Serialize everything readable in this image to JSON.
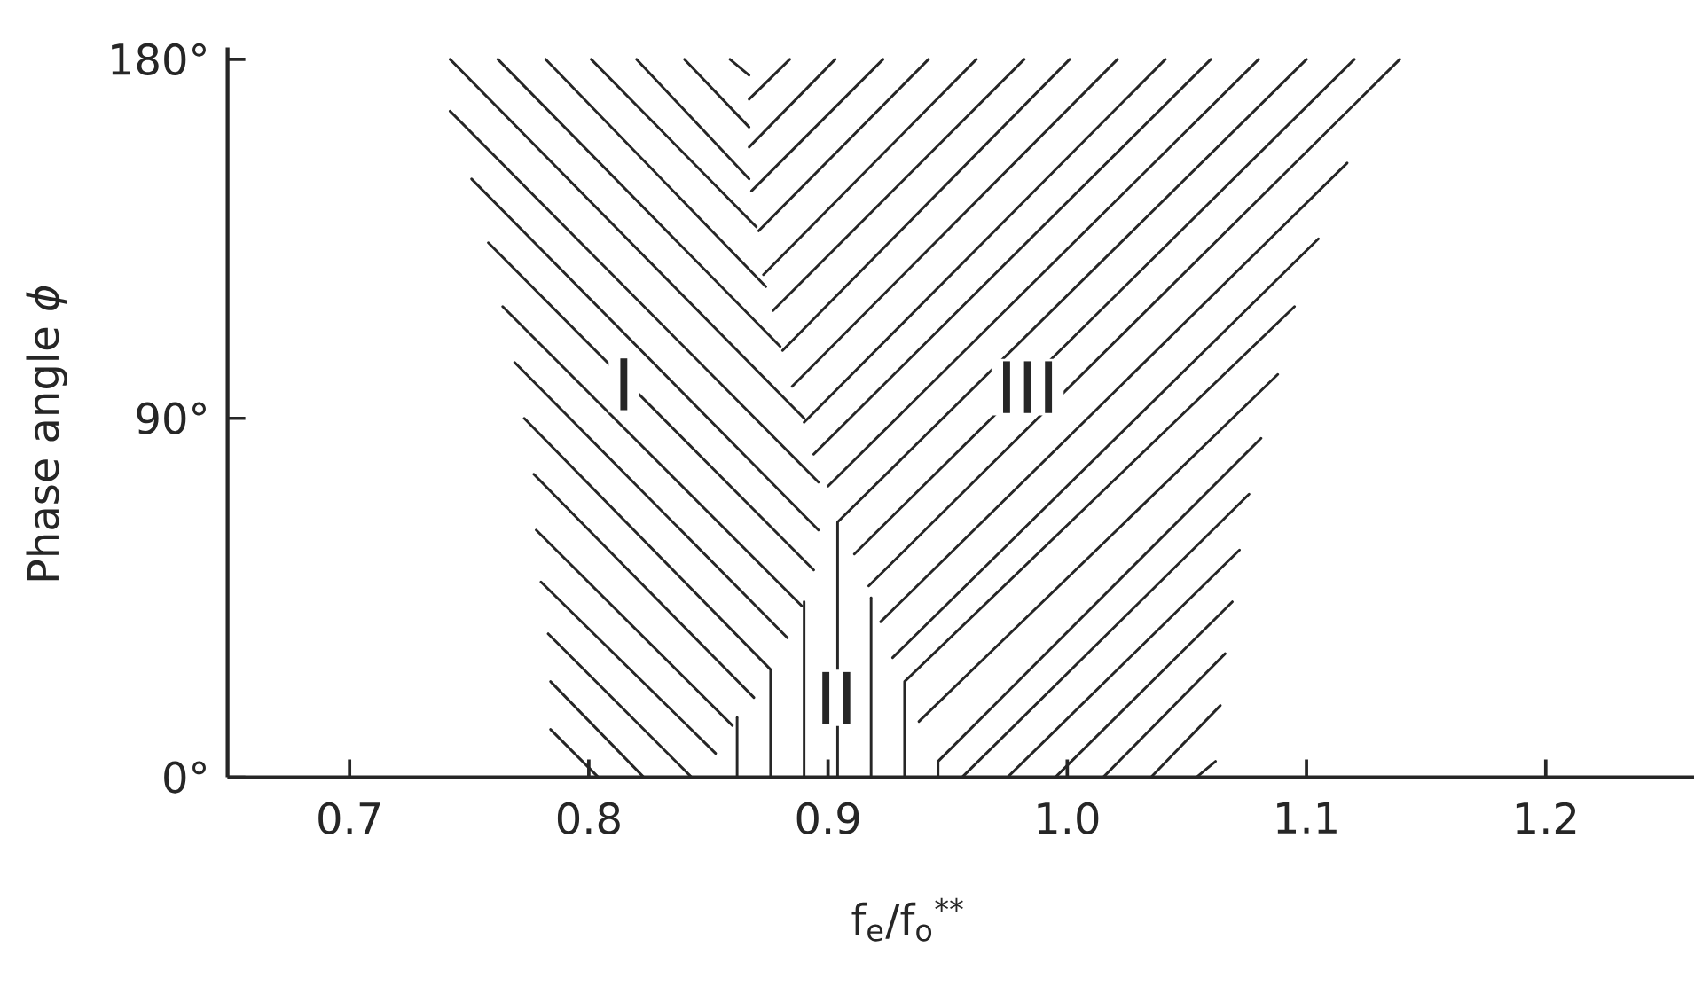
{
  "chart_data": {
    "type": "line",
    "xlabel": "f$_{e}$/f$_{o}$$^{**}$",
    "ylabel": "Phase angle *ϕ*",
    "xlim": [
      0.649,
      1.262
    ],
    "ylim": [
      0,
      183
    ],
    "xticks": [
      0.7,
      0.8,
      0.9,
      {
        "value": 1,
        "label": "1.0"
      },
      1.1,
      1.2
    ],
    "yticks": [
      {
        "value": 0,
        "label": "0°"
      },
      {
        "value": 90,
        "label": "90°"
      },
      {
        "value": 180,
        "label": "180°"
      }
    ],
    "color": "#262626",
    "series": [
      {
        "x": [
          0.742,
          0.89
        ],
        "values": [
          180,
          90
        ]
      },
      {
        "x": [
          0.762,
          0.88
        ],
        "values": [
          180,
          108
        ]
      },
      {
        "x": [
          0.782,
          0.874
        ],
        "values": [
          180,
          123
        ]
      },
      {
        "x": [
          0.801,
          0.87
        ],
        "values": [
          180,
          138
        ]
      },
      {
        "x": [
          0.82,
          0.867
        ],
        "values": [
          180,
          150
        ]
      },
      {
        "x": [
          0.84,
          0.867
        ],
        "values": [
          180,
          163
        ]
      },
      {
        "x": [
          0.859,
          0.867
        ],
        "values": [
          180,
          176
        ]
      },
      {
        "x": [
          0.742,
          0.896
        ],
        "values": [
          167,
          74
        ]
      },
      {
        "x": [
          0.751,
          0.896
        ],
        "values": [
          150,
          62
        ]
      },
      {
        "x": [
          0.758,
          0.894
        ],
        "values": [
          134,
          52
        ]
      },
      {
        "x": [
          0.764,
          0.889
        ],
        "values": [
          118,
          43
        ]
      },
      {
        "x": [
          0.769,
          0.883
        ],
        "values": [
          104,
          35
        ]
      },
      {
        "x": [
          0.773,
          0.876,
          0.876
        ],
        "values": [
          90,
          27,
          0
        ]
      },
      {
        "x": [
          0.777,
          0.869
        ],
        "values": [
          76,
          20
        ]
      },
      {
        "x": [
          0.778,
          0.86
        ],
        "values": [
          62,
          13
        ]
      },
      {
        "x": [
          0.78,
          0.853
        ],
        "values": [
          49,
          6
        ]
      },
      {
        "x": [
          0.783,
          0.843
        ],
        "values": [
          36,
          0
        ]
      },
      {
        "x": [
          0.784,
          0.823
        ],
        "values": [
          24,
          0
        ]
      },
      {
        "x": [
          0.784,
          0.804
        ],
        "values": [
          12,
          0
        ]
      },
      {
        "x": [
          0.862,
          0.862
        ],
        "values": [
          0,
          15
        ]
      },
      {
        "x": [
          0.89,
          0.89
        ],
        "values": [
          0,
          44
        ]
      },
      {
        "x": [
          0.918,
          0.918
        ],
        "values": [
          0,
          45
        ]
      },
      {
        "x": [
          0.867,
          0.884
        ],
        "values": [
          170,
          180
        ]
      },
      {
        "x": [
          0.867,
          0.903
        ],
        "values": [
          158,
          180
        ]
      },
      {
        "x": [
          0.868,
          0.923
        ],
        "values": [
          147,
          180
        ]
      },
      {
        "x": [
          0.871,
          0.942
        ],
        "values": [
          137,
          180
        ]
      },
      {
        "x": [
          0.873,
          0.962
        ],
        "values": [
          126,
          180
        ]
      },
      {
        "x": [
          0.877,
          0.982
        ],
        "values": [
          117,
          180
        ]
      },
      {
        "x": [
          0.881,
          1.001
        ],
        "values": [
          107,
          180
        ]
      },
      {
        "x": [
          0.885,
          1.021
        ],
        "values": [
          98,
          180
        ]
      },
      {
        "x": [
          0.89,
          1.041
        ],
        "values": [
          89,
          180
        ]
      },
      {
        "x": [
          0.894,
          1.06
        ],
        "values": [
          81,
          180
        ]
      },
      {
        "x": [
          0.9,
          1.08
        ],
        "values": [
          73,
          180
        ]
      },
      {
        "x": [
          0.904,
          0.904,
          1.1
        ],
        "values": [
          0,
          64,
          180
        ]
      },
      {
        "x": [
          0.911,
          1.12
        ],
        "values": [
          56,
          180
        ]
      },
      {
        "x": [
          0.917,
          1.139
        ],
        "values": [
          48,
          180
        ]
      },
      {
        "x": [
          0.922,
          1.117
        ],
        "values": [
          39,
          154
        ]
      },
      {
        "x": [
          0.927,
          1.105
        ],
        "values": [
          30,
          135
        ]
      },
      {
        "x": [
          0.932,
          0.932,
          1.095
        ],
        "values": [
          0,
          24,
          118
        ]
      },
      {
        "x": [
          0.938,
          1.088
        ],
        "values": [
          14,
          101
        ]
      },
      {
        "x": [
          0.946,
          0.946,
          1.081
        ],
        "values": [
          0,
          4,
          85
        ]
      },
      {
        "x": [
          0.956,
          1.076
        ],
        "values": [
          0,
          71
        ]
      },
      {
        "x": [
          0.975,
          1.072
        ],
        "values": [
          0,
          57
        ]
      },
      {
        "x": [
          0.995,
          1.069
        ],
        "values": [
          0,
          44
        ]
      },
      {
        "x": [
          1.015,
          1.066
        ],
        "values": [
          0,
          31
        ]
      },
      {
        "x": [
          1.035,
          1.064
        ],
        "values": [
          0,
          18
        ]
      },
      {
        "x": [
          1.054,
          1.062
        ],
        "values": [
          0,
          4
        ]
      }
    ],
    "annotations": [
      "I",
      "II",
      "III"
    ]
  }
}
